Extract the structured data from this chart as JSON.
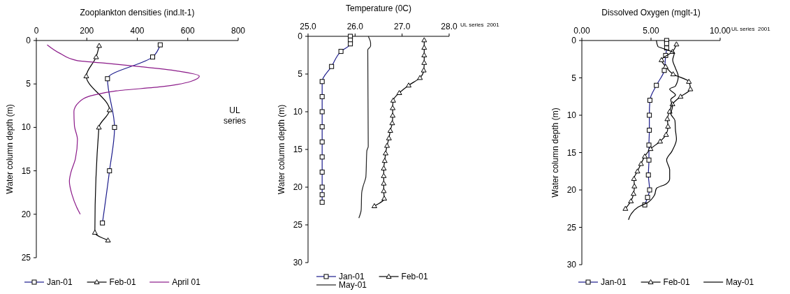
{
  "chart_data": [
    {
      "type": "line",
      "xlabel": "Zooplankton densities (ind.lt-1)",
      "ylabel": "Water column depth (m)",
      "xlim": [
        0,
        800
      ],
      "xticks": [
        0,
        200,
        400,
        600,
        800
      ],
      "ylim": [
        25,
        0
      ],
      "yticks": [
        0,
        5,
        10,
        15,
        20,
        25
      ],
      "legend": "bottom",
      "annotations": [
        "UL series"
      ],
      "series": [
        {
          "name": "Jan-01",
          "color": "#1c1c8c",
          "marker": "square",
          "x": [
            491,
            461,
            282,
            310,
            290,
            262
          ],
          "values": [
            0.5,
            1.9,
            4.4,
            10.0,
            15.0,
            21.0
          ]
        },
        {
          "name": "Feb-01",
          "color": "#000000",
          "marker": "triangle",
          "x": [
            249,
            237,
            198,
            290,
            248,
            232,
            284
          ],
          "values": [
            0.6,
            1.9,
            4.1,
            8.0,
            10.0,
            22.1,
            23.0
          ]
        },
        {
          "name": "April 01",
          "color": "#8b1a89",
          "marker": "none",
          "x": [
            43,
            95,
            160,
            271,
            410,
            558,
            646,
            613,
            502,
            317,
            225,
            169,
            149,
            151,
            163,
            155,
            137,
            131,
            142,
            160,
            174
          ],
          "values": [
            0.5,
            1.5,
            2.3,
            2.6,
            3.0,
            3.5,
            4.1,
            4.7,
            5.3,
            5.8,
            6.3,
            7.1,
            8.2,
            9.8,
            11.4,
            13.6,
            15.2,
            16.2,
            17.8,
            19.2,
            20.0
          ]
        }
      ]
    },
    {
      "type": "line",
      "xlabel": "Temperature (0C)",
      "ylabel": "Water column depth (m)",
      "xlim": [
        25,
        28
      ],
      "xticks": [
        {
          "value": 25,
          "label": "25.0"
        },
        {
          "value": 26,
          "label": "26.0"
        },
        {
          "value": 27,
          "label": "27.0"
        },
        {
          "value": 28,
          "label": "28.0"
        }
      ],
      "ylim": [
        30,
        0
      ],
      "yticks": [
        0,
        5,
        10,
        15,
        20,
        25,
        30
      ],
      "legend": "bottom",
      "annotations": [
        "UL series  2001"
      ],
      "series": [
        {
          "name": "Jan-01",
          "color": "#1c1c8c",
          "marker": "square",
          "x": [
            25.9,
            25.9,
            25.9,
            25.7,
            25.5,
            25.3,
            25.3,
            25.3,
            25.3,
            25.3,
            25.3,
            25.3,
            25.3,
            25.3,
            25.3
          ],
          "values": [
            0,
            0.5,
            1.0,
            2,
            4,
            6,
            8,
            10,
            12,
            14,
            16,
            18,
            20,
            21,
            22
          ]
        },
        {
          "name": "Feb-01",
          "color": "#000000",
          "marker": "triangle",
          "x": [
            27.47,
            27.47,
            27.47,
            27.47,
            27.46,
            27.38,
            27.14,
            26.94,
            26.81,
            26.8,
            26.8,
            26.79,
            26.75,
            26.72,
            26.68,
            26.65,
            26.63,
            26.61,
            26.61,
            26.61,
            26.61,
            26.62,
            26.41
          ],
          "values": [
            0.5,
            1.5,
            2.5,
            3.5,
            4.5,
            5.5,
            6.5,
            7.5,
            8.5,
            9.5,
            10.5,
            11.5,
            12.5,
            13.5,
            14.5,
            15.5,
            16.5,
            17.5,
            18.5,
            19.5,
            20.5,
            21.5,
            22.5
          ]
        },
        {
          "name": "May-01",
          "color": "#222222",
          "marker": "none",
          "x": [
            26.28,
            26.33,
            26.33,
            26.27,
            26.28,
            26.25,
            26.23,
            26.17,
            26.14,
            26.13,
            26.08
          ],
          "values": [
            0,
            0.9,
            1.3,
            1.8,
            14.6,
            15.2,
            18.6,
            19.9,
            20.8,
            23.0,
            24.1
          ]
        }
      ]
    },
    {
      "type": "line",
      "xlabel": "Dissolved Oxygen (mglt-1)",
      "ylabel": "Water column depth (m)",
      "xlim": [
        0,
        10
      ],
      "xticks": [
        {
          "value": 0,
          "label": "0.00"
        },
        {
          "value": 5,
          "label": "5.00"
        },
        {
          "value": 10,
          "label": "10.00"
        }
      ],
      "ylim": [
        30,
        0
      ],
      "yticks": [
        0,
        5,
        10,
        15,
        20,
        25,
        30
      ],
      "legend": "bottom",
      "annotations": [
        "UL series  2001"
      ],
      "series": [
        {
          "name": "Jan-01",
          "color": "#1c1c8c",
          "marker": "square",
          "x": [
            6.13,
            6.13,
            6.13,
            6.06,
            5.96,
            5.39,
            4.92,
            4.88,
            4.88,
            4.85,
            4.85,
            4.81,
            4.9,
            4.75,
            4.55
          ],
          "values": [
            0,
            0.4,
            1.0,
            2.0,
            4.0,
            6.0,
            8.0,
            10,
            12,
            14,
            16,
            18,
            20,
            21,
            22
          ]
        },
        {
          "name": "Feb-01",
          "color": "#000000",
          "marker": "triangle",
          "x": [
            6.84,
            6.55,
            5.76,
            6.06,
            6.6,
            7.74,
            7.85,
            7.14,
            6.55,
            6.35,
            6.18,
            6.23,
            6.09,
            5.66,
            4.97,
            4.55,
            4.28,
            4.02,
            3.77,
            3.8,
            3.74,
            3.55,
            3.15
          ],
          "values": [
            0.5,
            1.5,
            2.6,
            3.5,
            4.5,
            5.5,
            6.5,
            7.5,
            8.5,
            9.5,
            10.5,
            11.5,
            12.6,
            13.5,
            14.5,
            15.5,
            16.5,
            17.5,
            18.5,
            19.5,
            20.5,
            21.5,
            22.5
          ]
        },
        {
          "name": "May-01",
          "color": "#000000",
          "marker": "none",
          "x": [
            5.39,
            5.5,
            6.09,
            6.68,
            6.57,
            6.77,
            6.97,
            6.77,
            6.35,
            6.77,
            6.43,
            6.55,
            6.43,
            6.73,
            6.77,
            6.84,
            6.52,
            6.13,
            6.35,
            6.35,
            6.09,
            5.39,
            5.25,
            4.75,
            4.07,
            3.57,
            3.37
          ],
          "values": [
            0,
            0.8,
            1.2,
            1.7,
            2.6,
            3.7,
            4.8,
            6.1,
            6.5,
            7.3,
            7.9,
            8.9,
            9.8,
            10.7,
            12.0,
            13.2,
            14.8,
            16.0,
            17.3,
            18.5,
            19.2,
            19.8,
            20.7,
            21.7,
            22.3,
            23.2,
            24.0
          ]
        }
      ]
    }
  ]
}
